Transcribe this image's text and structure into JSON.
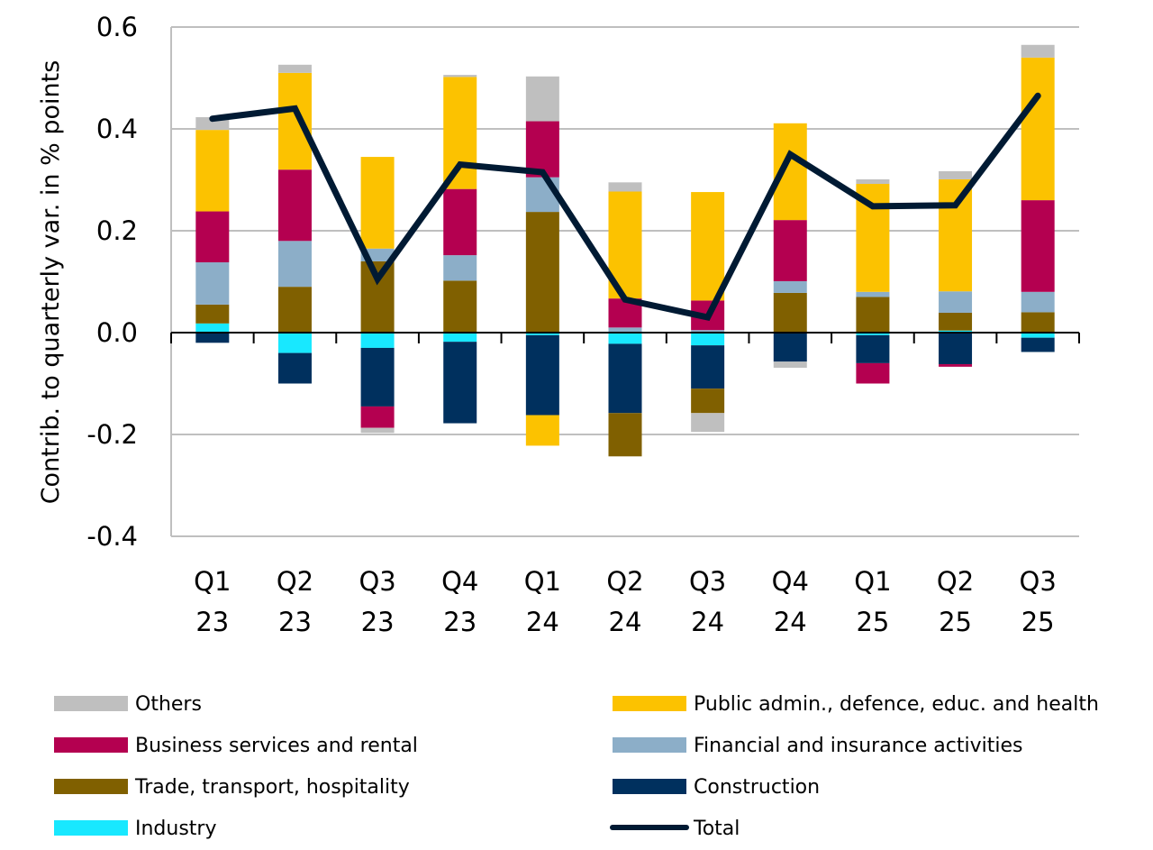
{
  "chart_data": {
    "type": "bar",
    "stacked": true,
    "title": "",
    "xlabel": "",
    "ylabel": "Contrib. to quarterly var. in % points",
    "ylim": [
      -0.4,
      0.6
    ],
    "yticks": [
      "0.6",
      "0.4",
      "0.2",
      "0.0",
      "-0.2",
      "-0.4"
    ],
    "ytick_values": [
      0.6,
      0.4,
      0.2,
      0.0,
      -0.2,
      -0.4
    ],
    "grid": true,
    "legend_position": "bottom",
    "categories": [
      [
        "Q1",
        "23"
      ],
      [
        "Q2",
        "23"
      ],
      [
        "Q3",
        "23"
      ],
      [
        "Q4",
        "23"
      ],
      [
        "Q1",
        "24"
      ],
      [
        "Q2",
        "24"
      ],
      [
        "Q3",
        "24"
      ],
      [
        "Q4",
        "24"
      ],
      [
        "Q1",
        "25"
      ],
      [
        "Q2",
        "25"
      ],
      [
        "Q3",
        "25"
      ]
    ],
    "series": [
      {
        "key": "industry",
        "name": "Industry",
        "color": "#18e8ff",
        "values": [
          0.018,
          -0.04,
          -0.03,
          -0.018,
          -0.005,
          -0.022,
          -0.025,
          0.0,
          -0.005,
          0.004,
          -0.01
        ]
      },
      {
        "key": "construction",
        "name": "Construction",
        "color": "#00305e",
        "values": [
          -0.02,
          -0.06,
          -0.115,
          -0.16,
          -0.157,
          -0.136,
          -0.085,
          -0.057,
          -0.055,
          -0.062,
          -0.028
        ]
      },
      {
        "key": "trade",
        "name": "Trade, transport, hospitality",
        "color": "#806000",
        "values": [
          0.037,
          0.09,
          0.14,
          0.102,
          0.237,
          -0.085,
          -0.048,
          0.078,
          0.07,
          0.035,
          0.04
        ]
      },
      {
        "key": "financial",
        "name": "Financial and insurance activities",
        "color": "#8caec8",
        "values": [
          0.083,
          0.09,
          0.025,
          0.05,
          0.068,
          0.01,
          0.005,
          0.023,
          0.01,
          0.042,
          0.04
        ]
      },
      {
        "key": "business",
        "name": "Business services and rental",
        "color": "#b40050",
        "values": [
          0.1,
          0.14,
          -0.042,
          0.13,
          0.11,
          0.057,
          0.058,
          0.12,
          -0.04,
          -0.005,
          0.18
        ]
      },
      {
        "key": "public",
        "name": "Public admin., defence, educ. and health",
        "color": "#fcc200",
        "values": [
          0.16,
          0.19,
          0.18,
          0.22,
          -0.06,
          0.21,
          0.213,
          0.19,
          0.212,
          0.22,
          0.28
        ]
      },
      {
        "key": "others",
        "name": "Others",
        "color": "#bfbfbf",
        "values": [
          0.025,
          0.016,
          -0.01,
          0.004,
          0.088,
          0.018,
          -0.037,
          -0.012,
          0.009,
          0.016,
          0.025
        ]
      }
    ],
    "line": {
      "key": "total",
      "name": "Total",
      "color": "#001a33",
      "values": [
        0.42,
        0.44,
        0.105,
        0.33,
        0.315,
        0.065,
        0.03,
        0.35,
        0.248,
        0.25,
        0.465
      ]
    },
    "legend": [
      {
        "key": "others",
        "label": "Others"
      },
      {
        "key": "public",
        "label": "Public admin., defence, educ. and health"
      },
      {
        "key": "business",
        "label": "Business services and rental"
      },
      {
        "key": "financial",
        "label": "Financial and insurance activities"
      },
      {
        "key": "trade",
        "label": "Trade, transport, hospitality"
      },
      {
        "key": "construction",
        "label": "Construction"
      },
      {
        "key": "industry",
        "label": "Industry"
      },
      {
        "key": "total",
        "label": "Total"
      }
    ]
  }
}
